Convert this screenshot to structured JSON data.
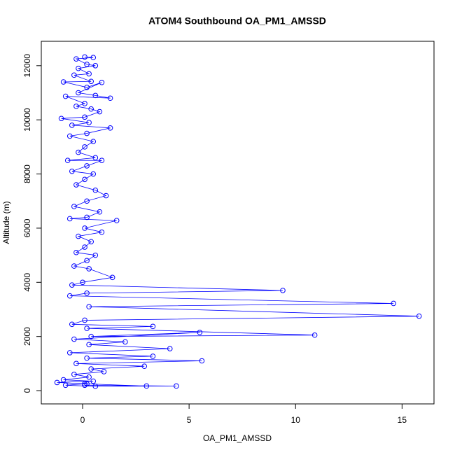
{
  "chart_data": {
    "type": "line",
    "title": "ATOM4 Southbound OA_PM1_AMSSD",
    "xlabel": "OA_PM1_AMSSD",
    "ylabel": "Altitude (m)",
    "color": "#0000ff",
    "xlim": [
      -1.94,
      16.5
    ],
    "ylim": [
      -490,
      12900
    ],
    "xticks": [
      0,
      5,
      10,
      15
    ],
    "yticks": [
      0,
      2000,
      4000,
      6000,
      8000,
      10000,
      12000
    ],
    "x": [
      0.1,
      0.5,
      -0.3,
      0.2,
      0.6,
      -0.2,
      0.3,
      -0.4,
      0.4,
      -0.9,
      0.2,
      0.9,
      -0.2,
      0.6,
      1.3,
      -0.8,
      0.1,
      -0.3,
      0.4,
      0.8,
      0.1,
      -1.0,
      0.3,
      -0.5,
      1.3,
      0.2,
      -0.6,
      0.5,
      0.1,
      -0.2,
      0.6,
      -0.7,
      0.9,
      0.2,
      -0.5,
      0.5,
      0.1,
      -0.3,
      0.6,
      1.1,
      0.2,
      -0.4,
      0.8,
      0.2,
      -0.6,
      1.6,
      0.1,
      0.9,
      -0.2,
      0.4,
      0.1,
      -0.3,
      0.6,
      0.2,
      -0.4,
      0.3,
      1.4,
      0.0,
      -0.5,
      9.4,
      0.2,
      -0.6,
      14.6,
      0.3,
      15.8,
      0.1,
      -0.5,
      3.3,
      0.2,
      10.9,
      0.4,
      5.5,
      -0.4,
      2.0,
      0.3,
      4.1,
      -0.6,
      3.3,
      0.2,
      5.6,
      -0.3,
      2.9,
      0.4,
      1.0,
      -0.4,
      0.3,
      -0.9,
      0.5,
      -1.2,
      0.2,
      3.0,
      0.1,
      4.4,
      0.6,
      -0.8,
      0.1
    ],
    "values": [
      12320,
      12300,
      12250,
      12050,
      12000,
      11900,
      11700,
      11650,
      11420,
      11400,
      11200,
      11380,
      11000,
      10900,
      10800,
      10870,
      10600,
      10500,
      10400,
      10300,
      10100,
      10050,
      9900,
      9800,
      9700,
      9500,
      9400,
      9200,
      9000,
      8800,
      8600,
      8500,
      8500,
      8300,
      8100,
      8000,
      7800,
      7600,
      7400,
      7200,
      7000,
      6800,
      6600,
      6400,
      6350,
      6280,
      6000,
      5850,
      5700,
      5500,
      5300,
      5100,
      5000,
      4800,
      4600,
      4500,
      4180,
      4000,
      3900,
      3700,
      3600,
      3500,
      3220,
      3100,
      2750,
      2600,
      2450,
      2370,
      2300,
      2050,
      2000,
      2150,
      1900,
      1800,
      1700,
      1550,
      1400,
      1270,
      1200,
      1100,
      1000,
      900,
      800,
      700,
      600,
      500,
      400,
      350,
      300,
      250,
      170,
      200,
      170,
      160,
      200,
      250
    ]
  }
}
